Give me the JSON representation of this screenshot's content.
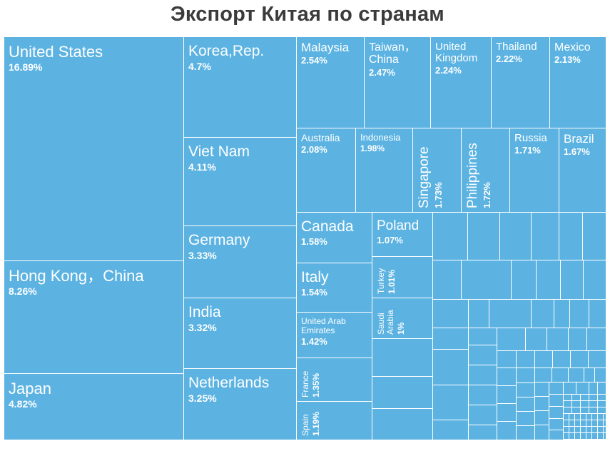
{
  "chart_data": {
    "type": "treemap",
    "title": "Экспорт Китая по странам",
    "unit": "%",
    "labeled": [
      {
        "name": "United States",
        "value": 16.89,
        "display": "16.89%"
      },
      {
        "name": "Hong Kong，China",
        "value": 8.26,
        "display": "8.26%"
      },
      {
        "name": "Japan",
        "value": 4.82,
        "display": "4.82%"
      },
      {
        "name": "Korea,Rep.",
        "value": 4.7,
        "display": "4.7%"
      },
      {
        "name": "Viet Nam",
        "value": 4.11,
        "display": "4.11%"
      },
      {
        "name": "Germany",
        "value": 3.33,
        "display": "3.33%"
      },
      {
        "name": "India",
        "value": 3.32,
        "display": "3.32%"
      },
      {
        "name": "Netherlands",
        "value": 3.25,
        "display": "3.25%"
      },
      {
        "name": "Malaysia",
        "value": 2.54,
        "display": "2.54%"
      },
      {
        "name": "Taiwan，\nChina",
        "value": 2.47,
        "display": "2.47%"
      },
      {
        "name": "United\nKingdom",
        "value": 2.24,
        "display": "2.24%"
      },
      {
        "name": "Thailand",
        "value": 2.22,
        "display": "2.22%"
      },
      {
        "name": "Mexico",
        "value": 2.13,
        "display": "2.13%"
      },
      {
        "name": "Australia",
        "value": 2.08,
        "display": "2.08%"
      },
      {
        "name": "Indonesia",
        "value": 1.98,
        "display": "1.98%"
      },
      {
        "name": "Singapore",
        "value": 1.73,
        "display": "1.73%"
      },
      {
        "name": "Philippines",
        "value": 1.72,
        "display": "1.72%"
      },
      {
        "name": "Russia",
        "value": 1.71,
        "display": "1.71%"
      },
      {
        "name": "Brazil",
        "value": 1.67,
        "display": "1.67%"
      },
      {
        "name": "Canada",
        "value": 1.58,
        "display": "1.58%"
      },
      {
        "name": "Poland",
        "value": 1.07,
        "display": "1.07%"
      },
      {
        "name": "Italy",
        "value": 1.54,
        "display": "1.54%"
      },
      {
        "name": "Turkey",
        "value": 1.01,
        "display": "1.01%"
      },
      {
        "name": "Saudi\nArabia",
        "value": 1,
        "display": "1%"
      },
      {
        "name": "United Arab\nEmirates",
        "value": 1.42,
        "display": "1.42%"
      },
      {
        "name": "France",
        "value": 1.35,
        "display": "1.35%"
      },
      {
        "name": "Spain",
        "value": 1.19,
        "display": "1.19%"
      }
    ],
    "colors": {
      "cell": "#5cb3e2",
      "border": "#ffffff",
      "text": "#ffffff",
      "title": "#3b3b3b"
    }
  }
}
